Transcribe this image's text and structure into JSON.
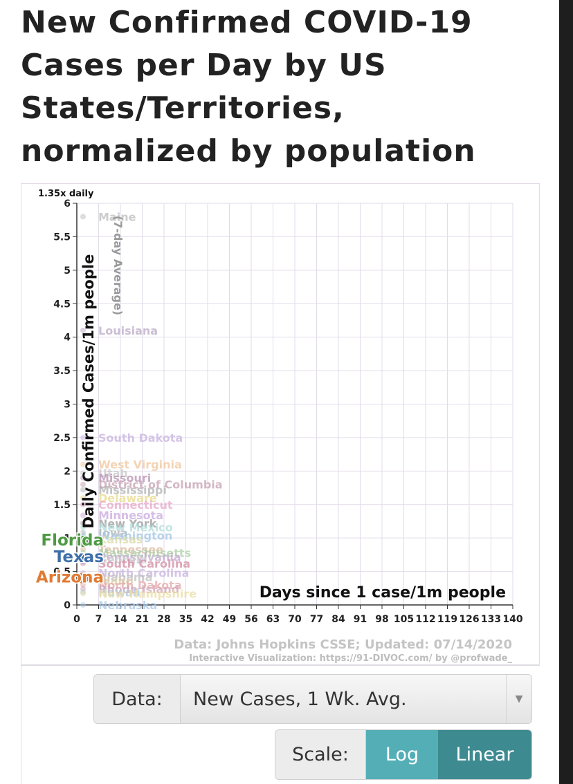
{
  "title": "New Confirmed COVID-19 Cases per Day by US States/Territories, normalized by population",
  "chart_data": {
    "type": "scatter",
    "xlabel": "Days since 1 case/1m people",
    "ylabel": "Daily Confirmed Cases/1m people",
    "ylabel_sub": "(7-day Average)",
    "xlim": [
      0,
      140
    ],
    "ylim": [
      0,
      6
    ],
    "x_ticks": [
      "0",
      "7",
      "14",
      "21",
      "28",
      "35",
      "42",
      "49",
      "56",
      "63",
      "70",
      "77",
      "84",
      "91",
      "98",
      "105",
      "112",
      "119",
      "126",
      "133",
      "140"
    ],
    "y_ticks": [
      "0",
      "0.5",
      "1",
      "1.5",
      "2",
      "2.5",
      "3",
      "3.5",
      "4",
      "4.5",
      "5",
      "5.5",
      "6"
    ],
    "grid": true,
    "corner_label": "1.35x daily",
    "source": "Data: Johns Hopkins CSSE; Updated: 07/14/2020",
    "credit": "Interactive Visualization: https://91-DIVOC.com/ by @profwade_",
    "highlighted": [
      {
        "name": "Florida",
        "x": 2,
        "y": 0.95,
        "color": "#4f9a43"
      },
      {
        "name": "Texas",
        "x": 2,
        "y": 0.7,
        "color": "#3f6fa8"
      },
      {
        "name": "Arizona",
        "x": 2,
        "y": 0.4,
        "color": "#e07b34"
      }
    ],
    "faded": [
      {
        "name": "Maine",
        "x": 2,
        "y": 5.8,
        "color": "#bbbbbb"
      },
      {
        "name": "Louisiana",
        "x": 2,
        "y": 4.1,
        "color": "#b9a8c6"
      },
      {
        "name": "South Dakota",
        "x": 2,
        "y": 2.5,
        "color": "#c7b3de"
      },
      {
        "name": "West Virginia",
        "x": 2,
        "y": 2.1,
        "color": "#efc69a"
      },
      {
        "name": "Utah",
        "x": 2,
        "y": 1.97,
        "color": "#c7c7c7"
      },
      {
        "name": "Missouri",
        "x": 2,
        "y": 1.9,
        "color": "#b690b0"
      },
      {
        "name": "District of Columbia",
        "x": 2,
        "y": 1.8,
        "color": "#c49fb0"
      },
      {
        "name": "Mississippi",
        "x": 2,
        "y": 1.72,
        "color": "#b0b0b0"
      },
      {
        "name": "Delaware",
        "x": 2,
        "y": 1.6,
        "color": "#e7d98b"
      },
      {
        "name": "Connecticut",
        "x": 2,
        "y": 1.5,
        "color": "#e8a6c8"
      },
      {
        "name": "Minnesota",
        "x": 2,
        "y": 1.34,
        "color": "#c8a7dc"
      },
      {
        "name": "New York",
        "x": 2,
        "y": 1.22,
        "color": "#9a9a9a"
      },
      {
        "name": "New Mexico",
        "x": 2,
        "y": 1.16,
        "color": "#aedbd8"
      },
      {
        "name": "Iowa",
        "x": 2,
        "y": 1.08,
        "color": "#b3b3b3"
      },
      {
        "name": "Washington",
        "x": 2,
        "y": 1.04,
        "color": "#9fc5e6"
      },
      {
        "name": "Kansas",
        "x": 2,
        "y": 0.98,
        "color": "#d8d8a6"
      },
      {
        "name": "Tennessee",
        "x": 2,
        "y": 0.83,
        "color": "#d9b89d"
      },
      {
        "name": "Massachusetts",
        "x": 2,
        "y": 0.78,
        "color": "#a8cfa3"
      },
      {
        "name": "Pennsylvania",
        "x": 2,
        "y": 0.72,
        "color": "#c3a7cf"
      },
      {
        "name": "Georgia",
        "x": 2,
        "y": 0.68,
        "color": "#cfcfcf"
      },
      {
        "name": "South Carolina",
        "x": 2,
        "y": 0.62,
        "color": "#d28aa0"
      },
      {
        "name": "North Carolina",
        "x": 2,
        "y": 0.48,
        "color": "#c8b3dd"
      },
      {
        "name": "Alabama",
        "x": 2,
        "y": 0.42,
        "color": "#bfbfbf"
      },
      {
        "name": "Idaho",
        "x": 2,
        "y": 0.36,
        "color": "#d9cfa5"
      },
      {
        "name": "North Dakota",
        "x": 2,
        "y": 0.3,
        "color": "#e5a7a7"
      },
      {
        "name": "Rhode Island",
        "x": 2,
        "y": 0.24,
        "color": "#cfa3b7"
      },
      {
        "name": "Hawaii",
        "x": 2,
        "y": 0.19,
        "color": "#a8c7e0"
      },
      {
        "name": "New Hampshire",
        "x": 2,
        "y": 0.17,
        "color": "#eadca2"
      },
      {
        "name": "Nebraska",
        "x": 2,
        "y": 0.0,
        "color": "#a8c7e6"
      }
    ]
  },
  "controls": {
    "data_label": "Data:",
    "data_value": "New Cases, 1 Wk. Avg.",
    "scale_label": "Scale:",
    "log_label": "Log",
    "linear_label": "Linear"
  }
}
